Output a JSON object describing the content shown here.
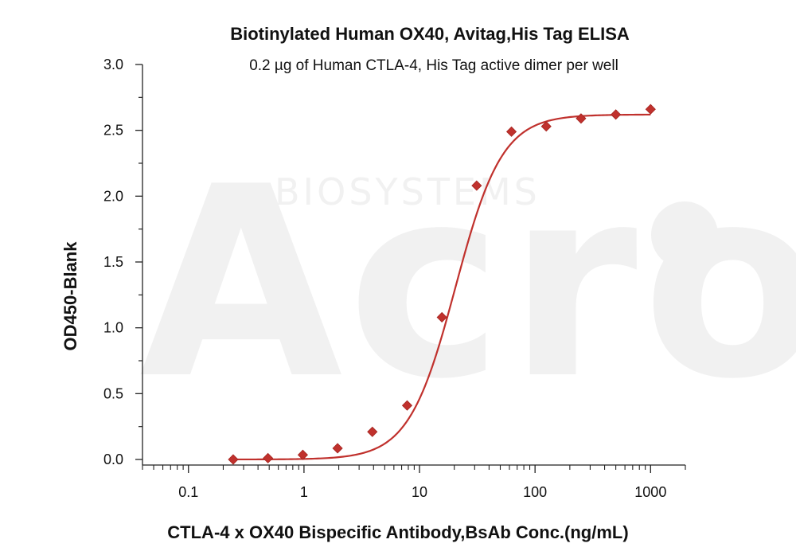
{
  "watermark": {
    "logo_text": "Acro",
    "brand_text": "BIOSYSTEMS"
  },
  "chart_data": {
    "type": "scatter",
    "title": "Biotinylated Human OX40, Avitag,His Tag ELISA",
    "subtitle": "0.2 µg of Human CTLA-4, His Tag  active dimer per well",
    "xlabel": "CTLA-4 x OX40 Bispecific Antibody,BsAb Conc.(ng/mL)",
    "ylabel": "OD450-Blank",
    "x_scale": "log",
    "xlim": [
      0.04,
      2000
    ],
    "ylim": [
      0,
      3.0
    ],
    "x_ticks": [
      0.1,
      1,
      10,
      100,
      1000
    ],
    "x_tick_labels": [
      "0.1",
      "1",
      "10",
      "100",
      "1000"
    ],
    "y_ticks": [
      0.0,
      0.5,
      1.0,
      1.5,
      2.0,
      2.5,
      3.0
    ],
    "y_tick_labels": [
      "0.0",
      "0.5",
      "1.0",
      "1.5",
      "2.0",
      "2.5",
      "3.0"
    ],
    "grid": false,
    "series": [
      {
        "color": "#c0312d",
        "marker": "diamond",
        "fit": "4PL",
        "x": [
          0.244,
          0.488,
          0.977,
          1.953,
          3.906,
          7.813,
          15.625,
          31.25,
          62.5,
          125,
          250,
          500,
          1000
        ],
        "y": [
          0.0,
          0.01,
          0.035,
          0.085,
          0.21,
          0.41,
          1.08,
          2.08,
          2.49,
          2.53,
          2.59,
          2.62,
          2.66
        ]
      }
    ]
  }
}
